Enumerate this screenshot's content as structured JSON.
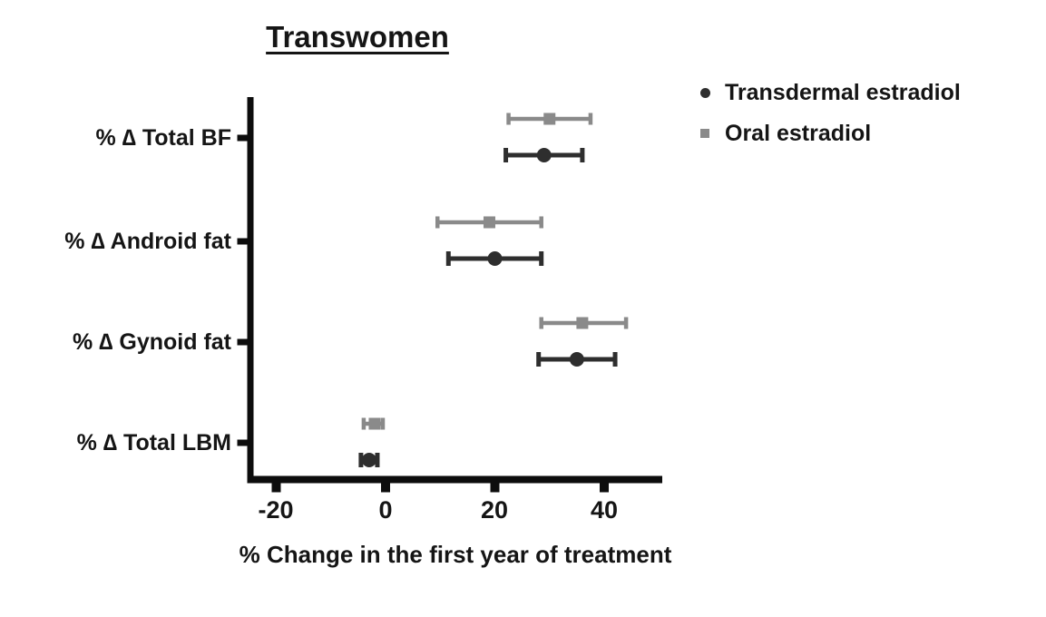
{
  "chart_data": {
    "type": "scatter",
    "subtype": "forest-plot-dot-with-error-bars",
    "title": "Transwomen",
    "xlabel": "% Change in the first year of treatment",
    "ylabel": "",
    "xticks": [
      -20,
      0,
      20,
      40
    ],
    "xlim": [
      -25,
      50.5
    ],
    "grid": false,
    "legend_position": "top-right",
    "categories": [
      "% ∆ Total BF",
      "% ∆ Android fat",
      "% ∆ Gynoid fat",
      "% ∆ Total LBM"
    ],
    "series": [
      {
        "name": "Transdermal estradiol",
        "marker": "circle",
        "color": "#2e2e2e",
        "values": [
          29,
          20,
          35,
          -3
        ],
        "ci_low": [
          22,
          11.5,
          28,
          -4.5
        ],
        "ci_high": [
          36,
          28.5,
          42,
          -1.5
        ]
      },
      {
        "name": "Oral estradiol",
        "marker": "square",
        "color": "#8a8a8a",
        "values": [
          30,
          19,
          36,
          -2
        ],
        "ci_low": [
          22.5,
          9.5,
          28.5,
          -4
        ],
        "ci_high": [
          37.5,
          28.5,
          44,
          -0.5
        ]
      }
    ]
  }
}
